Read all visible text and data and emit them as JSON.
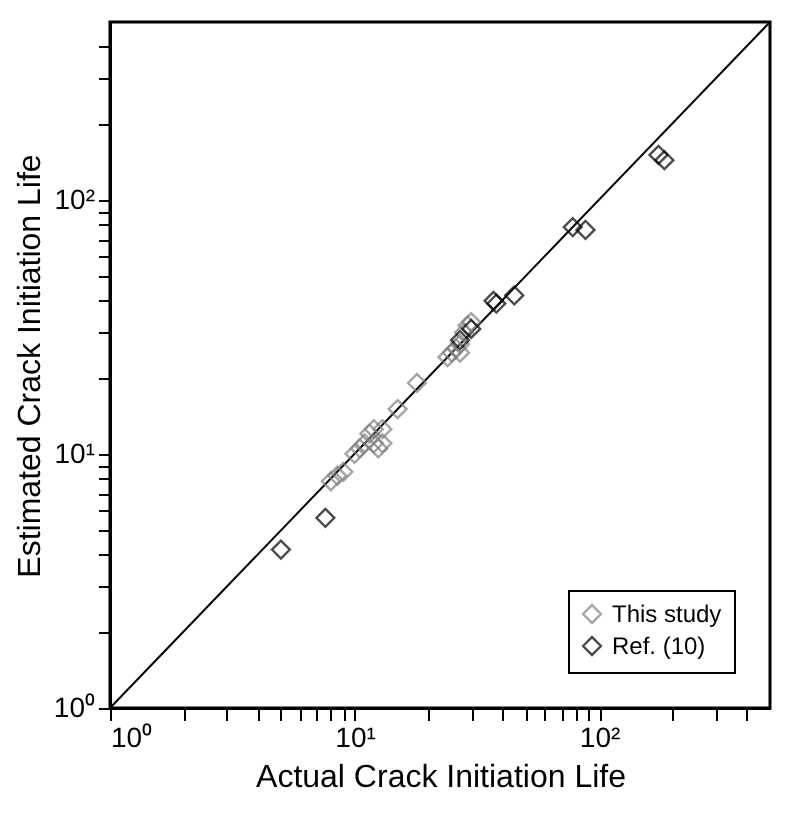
{
  "chart_data": {
    "type": "scatter",
    "xlabel": "Actual Crack Initiation Life",
    "ylabel": "Estimated Crack Initiation Life",
    "log": "xy",
    "legend": "bottom right",
    "xlim": [
      1,
      500
    ],
    "ylim": [
      1,
      500
    ],
    "xticks": [
      {
        "value": 1,
        "label": "10⁰"
      },
      {
        "value": 2,
        "label": null
      },
      {
        "value": 3,
        "label": null
      },
      {
        "value": 4,
        "label": null
      },
      {
        "value": 5,
        "label": null
      },
      {
        "value": 6,
        "label": null
      },
      {
        "value": 7,
        "label": null
      },
      {
        "value": 8,
        "label": null
      },
      {
        "value": 9,
        "label": null
      },
      {
        "value": 10,
        "label": "10¹"
      },
      {
        "value": 20,
        "label": null
      },
      {
        "value": 30,
        "label": null
      },
      {
        "value": 40,
        "label": null
      },
      {
        "value": 50,
        "label": null
      },
      {
        "value": 60,
        "label": null
      },
      {
        "value": 70,
        "label": null
      },
      {
        "value": 80,
        "label": null
      },
      {
        "value": 90,
        "label": null
      },
      {
        "value": 100,
        "label": "10²"
      },
      {
        "value": 200,
        "label": null
      },
      {
        "value": 300,
        "label": null
      },
      {
        "value": 400,
        "label": null
      }
    ],
    "yticks": [
      {
        "value": 1,
        "label": "10⁰"
      },
      {
        "value": 2,
        "label": null
      },
      {
        "value": 3,
        "label": null
      },
      {
        "value": 4,
        "label": null
      },
      {
        "value": 5,
        "label": null
      },
      {
        "value": 6,
        "label": null
      },
      {
        "value": 7,
        "label": null
      },
      {
        "value": 8,
        "label": null
      },
      {
        "value": 9,
        "label": null
      },
      {
        "value": 10,
        "label": "10¹"
      },
      {
        "value": 20,
        "label": null
      },
      {
        "value": 30,
        "label": null
      },
      {
        "value": 40,
        "label": null
      },
      {
        "value": 50,
        "label": null
      },
      {
        "value": 60,
        "label": null
      },
      {
        "value": 70,
        "label": null
      },
      {
        "value": 80,
        "label": null
      },
      {
        "value": 90,
        "label": null
      },
      {
        "value": 100,
        "label": "10²"
      },
      {
        "value": 200,
        "label": null
      },
      {
        "value": 300,
        "label": null
      },
      {
        "value": 400,
        "label": null
      }
    ],
    "series": [
      {
        "type": "line",
        "color": "#000000",
        "x": [
          1,
          500
        ],
        "values": [
          1,
          500
        ]
      },
      {
        "name": "This study",
        "color": "#808080",
        "marker": "diamond",
        "x": [
          8,
          8.5,
          9,
          10,
          10.5,
          11,
          11.5,
          12,
          12,
          12.5,
          13,
          13,
          15,
          18,
          24,
          25,
          26,
          27,
          27,
          28,
          29,
          30
        ],
        "values": [
          7.8,
          8.2,
          8.5,
          10,
          10.5,
          11,
          12,
          12.5,
          11,
          10.5,
          11,
          12.5,
          15,
          19,
          24,
          25,
          26,
          27,
          25,
          30,
          32,
          33
        ]
      },
      {
        "name": "Ref. (10)",
        "color": "#000000",
        "marker": "diamond",
        "x": [
          5,
          7.6,
          27,
          30,
          37,
          38,
          45,
          78,
          88,
          175,
          185
        ],
        "values": [
          4.2,
          5.6,
          28,
          31,
          40,
          39,
          42,
          78,
          76,
          150,
          143
        ]
      }
    ]
  }
}
